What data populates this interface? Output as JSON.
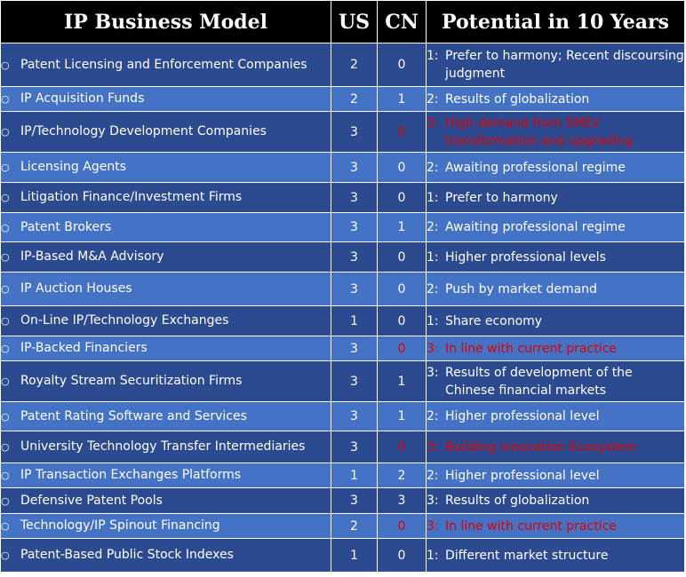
{
  "header": {
    "model": "IP Business Model",
    "us": "US",
    "cn": "CN",
    "potential": "Potential in 10 Years"
  },
  "bullet": "○",
  "colors": {
    "dark_row": "#2c4a8f",
    "light_row": "#4472c4",
    "header": "#000000",
    "highlight": "#e00000"
  },
  "rows": [
    {
      "model": "Patent Licensing and Enforcement Companies",
      "us": "2",
      "cn": "0",
      "pnum": "1:",
      "ptext": "Prefer to harmony; Recent discoursing judgment",
      "red": false
    },
    {
      "model": "IP Acquisition Funds",
      "us": "2",
      "cn": "1",
      "pnum": "2:",
      "ptext": "Results of globalization",
      "red": false
    },
    {
      "model": "IP/Technology Development Companies",
      "us": "3",
      "cn": "0",
      "pnum": "3:",
      "ptext": "High demand from SMEs' transformation and upgrading",
      "red": true
    },
    {
      "model": "Licensing Agents",
      "us": "3",
      "cn": "0",
      "pnum": "2:",
      "ptext": "Awaiting professional regime",
      "red": false
    },
    {
      "model": "Litigation Finance/Investment Firms",
      "us": "3",
      "cn": "0",
      "pnum": "1:",
      "ptext": "Prefer to harmony",
      "red": false
    },
    {
      "model": "Patent Brokers",
      "us": "3",
      "cn": "1",
      "pnum": "2:",
      "ptext": "Awaiting professional regime",
      "red": false
    },
    {
      "model": "IP-Based M&A Advisory",
      "us": "3",
      "cn": "0",
      "pnum": "1:",
      "ptext": "Higher professional levels",
      "red": false
    },
    {
      "model": "IP Auction Houses",
      "us": "3",
      "cn": "0",
      "pnum": "2:",
      "ptext": "Push by market demand",
      "red": false
    },
    {
      "model": "On-Line IP/Technology Exchanges",
      "us": "1",
      "cn": "0",
      "pnum": "1:",
      "ptext": "Share economy",
      "red": false
    },
    {
      "model": "IP-Backed Financiers",
      "us": "3",
      "cn": "0",
      "pnum": "3:",
      "ptext": "In line  with current practice",
      "red": true
    },
    {
      "model": "Royalty Stream Securitization Firms",
      "us": "3",
      "cn": "1",
      "pnum": "3:",
      "ptext": "Results of  development of the Chinese financial markets",
      "red": false
    },
    {
      "model": "Patent Rating Software and Services",
      "us": "3",
      "cn": "1",
      "pnum": "2:",
      "ptext": "Higher professional level",
      "red": false
    },
    {
      "model": "University Technology Transfer Intermediaries",
      "us": "3",
      "cn": "0",
      "pnum": "3:",
      "ptext": "Building innovation Ecosystem",
      "red": true
    },
    {
      "model": "IP Transaction Exchanges Platforms",
      "us": "1",
      "cn": "2",
      "pnum": "2:",
      "ptext": " Higher professional level",
      "red": false
    },
    {
      "model": "Defensive Patent Pools",
      "us": "3",
      "cn": "3",
      "pnum": "3:",
      "ptext": "Results of globalization",
      "red": false
    },
    {
      "model": "Technology/IP Spinout Financing",
      "us": "2",
      "cn": "0",
      "pnum": "3:",
      "ptext": "In line  with current practice",
      "red": true
    },
    {
      "model": "Patent-Based Public Stock Indexes",
      "us": "1",
      "cn": "0",
      "pnum": "1:",
      "ptext": "Different market structure",
      "red": false
    }
  ]
}
